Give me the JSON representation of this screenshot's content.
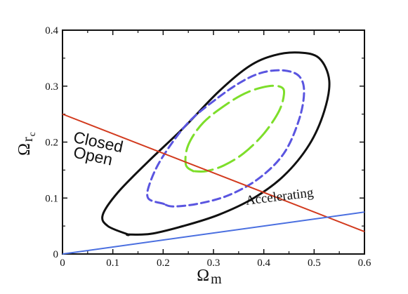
{
  "chart_data": {
    "type": "line",
    "xlabel": {
      "main": "Ω",
      "sub": "m"
    },
    "ylabel": {
      "main": "Ω",
      "sub": "r",
      "subsub": "c"
    },
    "xlim": [
      0,
      0.6
    ],
    "ylim": [
      0,
      0.4
    ],
    "x_ticks": [
      "0",
      "0.1",
      "0.2",
      "0.3",
      "0.4",
      "0.5",
      "0.6"
    ],
    "y_ticks": [
      "0",
      "0.1",
      "0.2",
      "0.3",
      "0.4"
    ],
    "grid": false,
    "lines": [
      {
        "id": "flat-boundary",
        "color": "#d23a1e",
        "style": "solid",
        "x": [
          0,
          0.6
        ],
        "y": [
          0.25,
          0.04
        ]
      },
      {
        "id": "acceleration-boundary",
        "color": "#4a6fe0",
        "style": "solid",
        "x": [
          0,
          0.6
        ],
        "y": [
          0,
          0.075
        ]
      }
    ],
    "contours": [
      {
        "id": "outer-contour",
        "color": "#111111",
        "style": "solid",
        "x": [
          0.13,
          0.09,
          0.08,
          0.11,
          0.17,
          0.24,
          0.31,
          0.37,
          0.42,
          0.47,
          0.51,
          0.53,
          0.52,
          0.49,
          0.44,
          0.38,
          0.31,
          0.24,
          0.175,
          0.13
        ],
        "y": [
          0.035,
          0.05,
          0.07,
          0.11,
          0.165,
          0.225,
          0.29,
          0.335,
          0.355,
          0.36,
          0.35,
          0.31,
          0.255,
          0.195,
          0.14,
          0.1,
          0.07,
          0.05,
          0.036,
          0.035
        ]
      },
      {
        "id": "middle-contour",
        "color": "#5a55e0",
        "style": "dashed",
        "x": [
          0.2,
          0.17,
          0.175,
          0.2,
          0.25,
          0.31,
          0.36,
          0.4,
          0.44,
          0.47,
          0.48,
          0.47,
          0.44,
          0.39,
          0.33,
          0.27,
          0.22,
          0.2
        ],
        "y": [
          0.09,
          0.1,
          0.13,
          0.175,
          0.235,
          0.28,
          0.31,
          0.325,
          0.328,
          0.318,
          0.29,
          0.24,
          0.18,
          0.135,
          0.105,
          0.09,
          0.085,
          0.09
        ]
      },
      {
        "id": "inner-contour",
        "color": "#7dde2a",
        "style": "long-dashed",
        "x": [
          0.26,
          0.245,
          0.25,
          0.28,
          0.33,
          0.37,
          0.41,
          0.435,
          0.44,
          0.43,
          0.4,
          0.36,
          0.32,
          0.285,
          0.26
        ],
        "y": [
          0.148,
          0.16,
          0.195,
          0.235,
          0.27,
          0.29,
          0.3,
          0.298,
          0.285,
          0.255,
          0.215,
          0.18,
          0.158,
          0.148,
          0.148
        ]
      }
    ],
    "annotations": [
      {
        "id": "closed",
        "text": "Closed",
        "x": 0.02,
        "y": 0.2,
        "rotate": 12
      },
      {
        "id": "open",
        "text": "Open",
        "x": 0.02,
        "y": 0.173,
        "rotate": 12
      },
      {
        "id": "accelerating",
        "text": "Accelerating",
        "x": 0.365,
        "y": 0.088,
        "rotate": -7
      }
    ]
  }
}
